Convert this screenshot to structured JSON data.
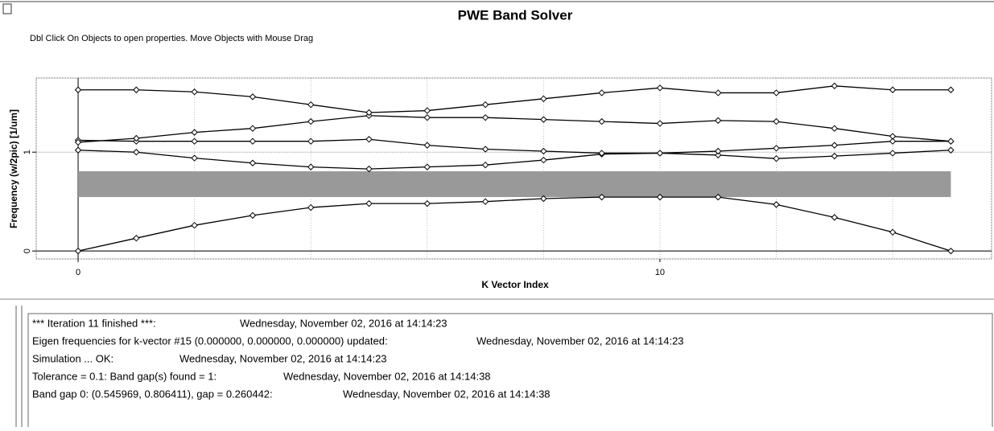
{
  "window": {
    "title": "PWE Band Solver",
    "hint": "Dbl Click On Objects to open properties.  Move Objects with Mouse Drag"
  },
  "chart_data": {
    "type": "line",
    "xlabel": "K Vector Index",
    "ylabel": "Frequency (w/2pic) [1/um]",
    "x": [
      0,
      1,
      2,
      3,
      4,
      5,
      6,
      7,
      8,
      9,
      10,
      11,
      12,
      13,
      14,
      15
    ],
    "color": "#000000",
    "series": [
      {
        "values": [
          0,
          0.13,
          0.26,
          0.36,
          0.44,
          0.48,
          0.48,
          0.5,
          0.53,
          0.545,
          0.545,
          0.545,
          0.47,
          0.34,
          0.19,
          0
        ]
      },
      {
        "values": [
          1.02,
          1.0,
          0.94,
          0.89,
          0.85,
          0.83,
          0.85,
          0.87,
          0.92,
          0.98,
          0.99,
          0.97,
          0.935,
          0.96,
          0.99,
          1.02
        ]
      },
      {
        "values": [
          1.12,
          1.11,
          1.11,
          1.11,
          1.11,
          1.13,
          1.07,
          1.03,
          1.01,
          0.99,
          0.99,
          1.01,
          1.04,
          1.07,
          1.11,
          1.11
        ]
      },
      {
        "values": [
          1.1,
          1.14,
          1.2,
          1.24,
          1.31,
          1.37,
          1.35,
          1.35,
          1.33,
          1.31,
          1.29,
          1.32,
          1.31,
          1.24,
          1.16,
          1.11
        ]
      },
      {
        "values": [
          1.63,
          1.63,
          1.61,
          1.56,
          1.48,
          1.4,
          1.42,
          1.48,
          1.54,
          1.6,
          1.65,
          1.6,
          1.6,
          1.67,
          1.63,
          1.63
        ]
      }
    ],
    "band_gap": [
      0.545969,
      0.806411
    ],
    "band_gap_color": "#999999",
    "xlim": [
      -0.72,
      15.7
    ],
    "ylim": [
      -0.08,
      1.75
    ],
    "xticks": [
      0,
      10
    ],
    "yticks": [
      0,
      1
    ],
    "xgrid": [
      0,
      2,
      4,
      6,
      8,
      10,
      12,
      14
    ],
    "grid": true
  },
  "log": [
    {
      "message": "*** Iteration  11 finished ***:",
      "time": "Wednesday, November 02, 2016 at 14:14:23"
    },
    {
      "message": "Eigen frequencies for k-vector #15 (0.000000, 0.000000, 0.000000) updated:",
      "time": "Wednesday, November 02, 2016 at 14:14:23"
    },
    {
      "message": "Simulation ... OK:",
      "time": "Wednesday, November 02, 2016 at 14:14:23"
    },
    {
      "message": "Tolerance = 0.1: Band gap(s) found = 1:",
      "time": "Wednesday, November 02, 2016 at 14:14:38"
    },
    {
      "message": "Band gap 0: (0.545969, 0.806411), gap = 0.260442:",
      "time": "Wednesday, November 02, 2016 at 14:14:38"
    }
  ]
}
